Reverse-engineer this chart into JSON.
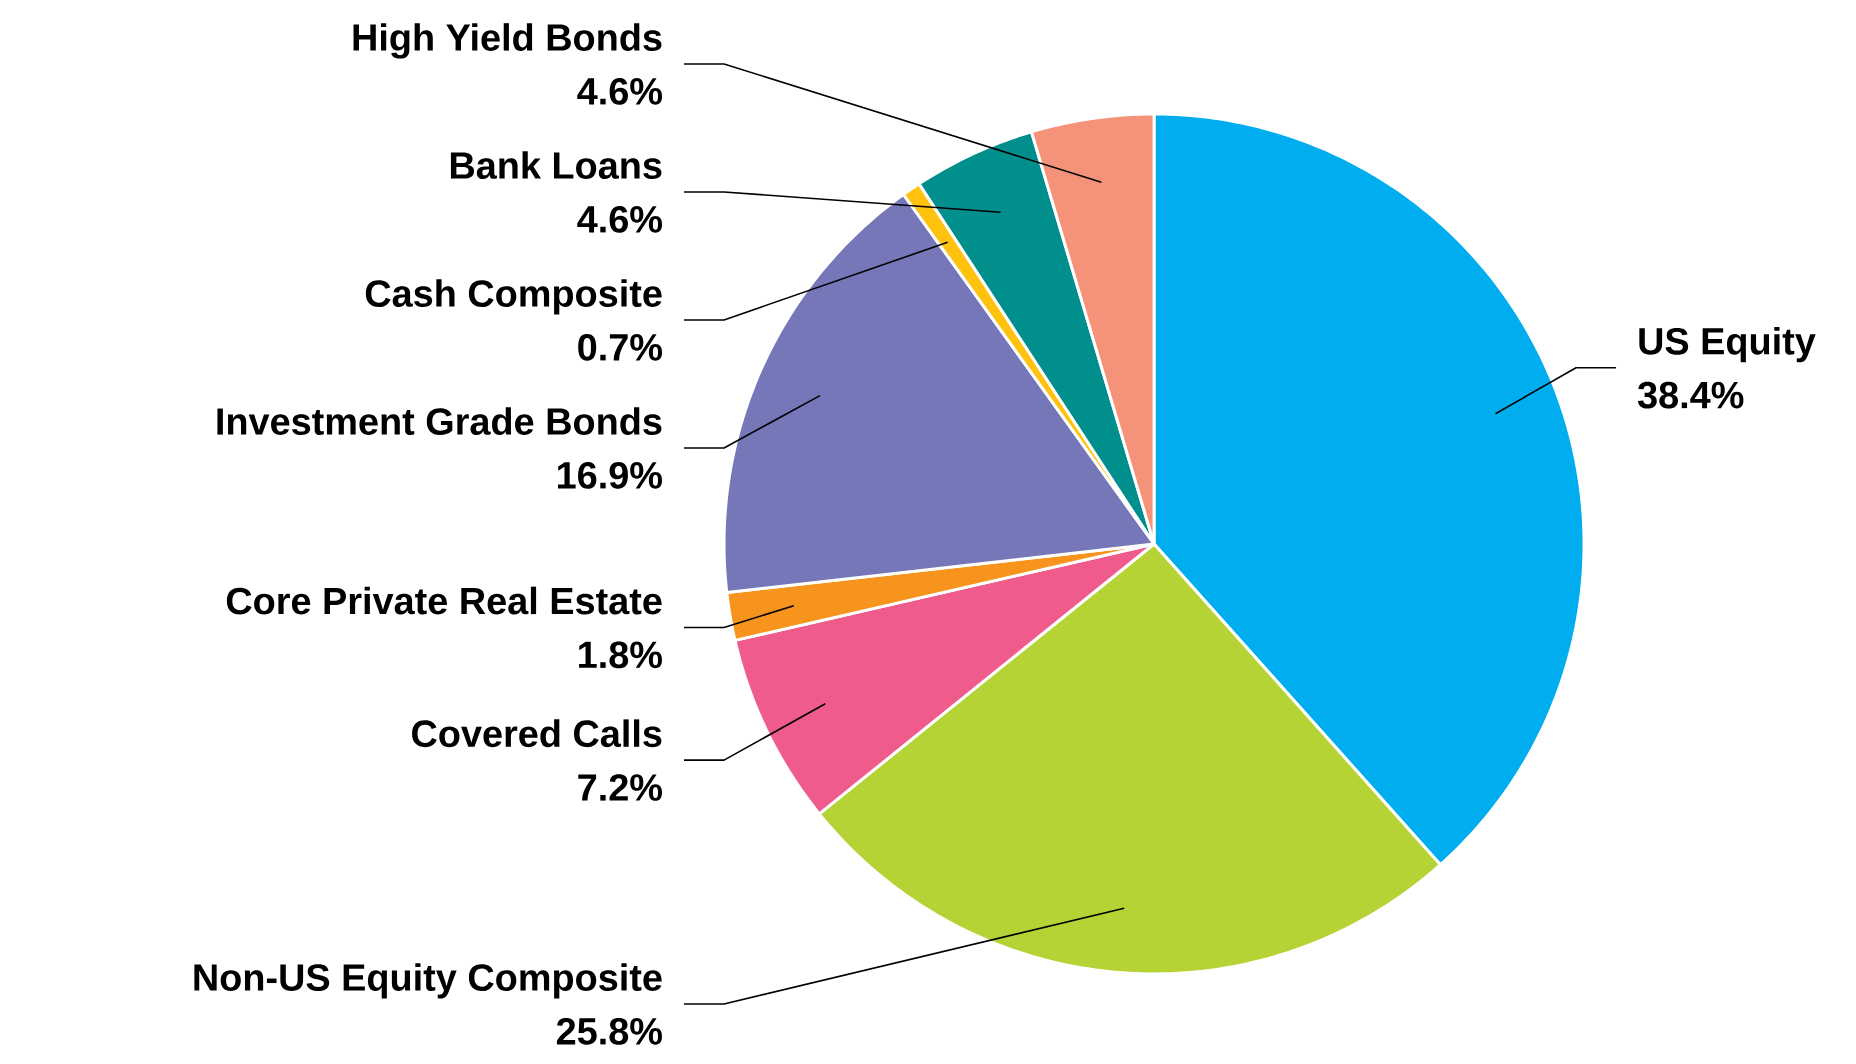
{
  "chart_data": {
    "type": "pie",
    "categories": [
      "US Equity",
      "Non-US Equity Composite",
      "Covered Calls",
      "Core Private Real Estate",
      "Investment Grade Bonds",
      "Cash Composite",
      "Bank Loans",
      "High Yield Bonds"
    ],
    "values": [
      38.4,
      25.8,
      7.2,
      1.8,
      16.9,
      0.7,
      4.6,
      4.6
    ],
    "colors": [
      "#00aeef",
      "#b5d334",
      "#ef5b8a",
      "#f7941d",
      "#7577b9",
      "#ffc20e",
      "#008f8c",
      "#f4937a"
    ],
    "value_labels": [
      "38.4%",
      "25.8%",
      "7.2%",
      "1.8%",
      "16.9%",
      "0.7%",
      "4.6%",
      "4.6%"
    ]
  }
}
